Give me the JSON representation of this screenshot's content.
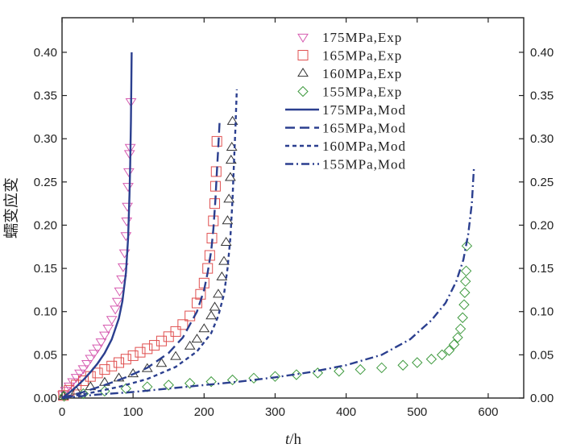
{
  "chart_data": {
    "type": "line",
    "xlabel_italic": "t",
    "xlabel_unit": "/h",
    "ylabel": "蠕变应变",
    "xlim": [
      0,
      650
    ],
    "ylim": [
      0,
      0.44
    ],
    "x_ticks": [
      0,
      100,
      200,
      300,
      400,
      500,
      600
    ],
    "y_ticks": [
      0.0,
      0.05,
      0.1,
      0.15,
      0.2,
      0.25,
      0.3,
      0.35,
      0.4
    ],
    "x_tick_labels": [
      "0",
      "100",
      "200",
      "300",
      "400",
      "500",
      "600"
    ],
    "y_tick_labels": [
      "0.00",
      "0.05",
      "0.10",
      "0.15",
      "0.20",
      "0.25",
      "0.30",
      "0.35",
      "0.40"
    ],
    "series": [
      {
        "name": "175MPa,Exp",
        "kind": "exp",
        "marker": "triangle-down",
        "color": "#d65cb0",
        "x": [
          1,
          5,
          10,
          15,
          20,
          25,
          30,
          35,
          40,
          45,
          50,
          55,
          60,
          65,
          70,
          75,
          78,
          81,
          84,
          86,
          88,
          90,
          91,
          92,
          93,
          94,
          95,
          96,
          97
        ],
        "y": [
          0.004,
          0.009,
          0.014,
          0.019,
          0.024,
          0.029,
          0.034,
          0.04,
          0.046,
          0.052,
          0.058,
          0.065,
          0.073,
          0.081,
          0.091,
          0.103,
          0.112,
          0.124,
          0.138,
          0.152,
          0.168,
          0.188,
          0.205,
          0.222,
          0.245,
          0.262,
          0.283,
          0.29,
          0.343
        ]
      },
      {
        "name": "165MPa,Exp",
        "kind": "exp",
        "marker": "square",
        "color": "#e05050",
        "x": [
          2,
          10,
          20,
          30,
          40,
          50,
          60,
          70,
          80,
          90,
          100,
          110,
          120,
          130,
          140,
          150,
          160,
          170,
          180,
          190,
          195,
          200,
          205,
          208,
          211,
          213,
          215,
          216,
          217,
          218
        ],
        "y": [
          0.003,
          0.009,
          0.015,
          0.02,
          0.025,
          0.029,
          0.033,
          0.037,
          0.041,
          0.045,
          0.049,
          0.053,
          0.057,
          0.061,
          0.066,
          0.071,
          0.077,
          0.085,
          0.095,
          0.11,
          0.12,
          0.133,
          0.15,
          0.165,
          0.185,
          0.205,
          0.225,
          0.245,
          0.262,
          0.297
        ]
      },
      {
        "name": "160MPa,Exp",
        "kind": "exp",
        "marker": "triangle-up",
        "color": "#333333",
        "x": [
          2,
          20,
          40,
          60,
          80,
          100,
          120,
          140,
          160,
          180,
          190,
          200,
          210,
          215,
          220,
          225,
          228,
          231,
          233,
          235,
          237,
          238,
          239,
          240
        ],
        "y": [
          0.002,
          0.008,
          0.013,
          0.018,
          0.023,
          0.028,
          0.034,
          0.04,
          0.048,
          0.06,
          0.068,
          0.08,
          0.095,
          0.105,
          0.12,
          0.14,
          0.158,
          0.18,
          0.205,
          0.23,
          0.255,
          0.275,
          0.29,
          0.32
        ]
      },
      {
        "name": "155MPa,Exp",
        "kind": "exp",
        "marker": "diamond",
        "color": "#3f9a3f",
        "x": [
          3,
          30,
          60,
          90,
          120,
          150,
          180,
          210,
          240,
          270,
          300,
          330,
          360,
          390,
          420,
          450,
          480,
          500,
          520,
          535,
          545,
          552,
          557,
          561,
          564,
          566,
          567,
          568,
          569,
          570
        ],
        "y": [
          0.002,
          0.005,
          0.008,
          0.011,
          0.013,
          0.015,
          0.017,
          0.019,
          0.021,
          0.023,
          0.025,
          0.027,
          0.029,
          0.031,
          0.033,
          0.035,
          0.038,
          0.041,
          0.045,
          0.05,
          0.055,
          0.062,
          0.07,
          0.08,
          0.093,
          0.108,
          0.122,
          0.135,
          0.147,
          0.176
        ]
      },
      {
        "name": "175MPa,Mod",
        "kind": "mod",
        "dash": "solid",
        "color": "#2b3f8f",
        "x": [
          0,
          10,
          20,
          30,
          40,
          50,
          60,
          70,
          80,
          85,
          90,
          93,
          95,
          96,
          97,
          98
        ],
        "y": [
          0,
          0.006,
          0.013,
          0.021,
          0.03,
          0.04,
          0.052,
          0.068,
          0.092,
          0.112,
          0.145,
          0.185,
          0.235,
          0.27,
          0.32,
          0.4
        ]
      },
      {
        "name": "165MPa,Mod",
        "kind": "mod",
        "dash": "long",
        "color": "#2b3f8f",
        "x": [
          0,
          30,
          60,
          90,
          120,
          150,
          170,
          190,
          200,
          205,
          210,
          213,
          216,
          218,
          220,
          222
        ],
        "y": [
          0,
          0.007,
          0.015,
          0.024,
          0.035,
          0.052,
          0.07,
          0.1,
          0.125,
          0.145,
          0.17,
          0.195,
          0.23,
          0.262,
          0.29,
          0.322
        ]
      },
      {
        "name": "160MPa,Mod",
        "kind": "mod",
        "dash": "short",
        "color": "#2b3f8f",
        "x": [
          0,
          40,
          80,
          120,
          160,
          190,
          210,
          220,
          228,
          233,
          237,
          240,
          242,
          244,
          246
        ],
        "y": [
          0,
          0.006,
          0.013,
          0.022,
          0.036,
          0.054,
          0.075,
          0.095,
          0.12,
          0.15,
          0.185,
          0.23,
          0.27,
          0.31,
          0.357
        ]
      },
      {
        "name": "155MPa,Mod",
        "kind": "mod",
        "dash": "dashdot",
        "color": "#2b3f8f",
        "x": [
          0,
          50,
          100,
          150,
          200,
          250,
          300,
          350,
          400,
          450,
          490,
          520,
          540,
          555,
          565,
          572,
          577,
          580
        ],
        "y": [
          0,
          0.004,
          0.007,
          0.011,
          0.015,
          0.019,
          0.024,
          0.03,
          0.038,
          0.05,
          0.068,
          0.09,
          0.11,
          0.135,
          0.16,
          0.19,
          0.225,
          0.268
        ]
      }
    ]
  }
}
